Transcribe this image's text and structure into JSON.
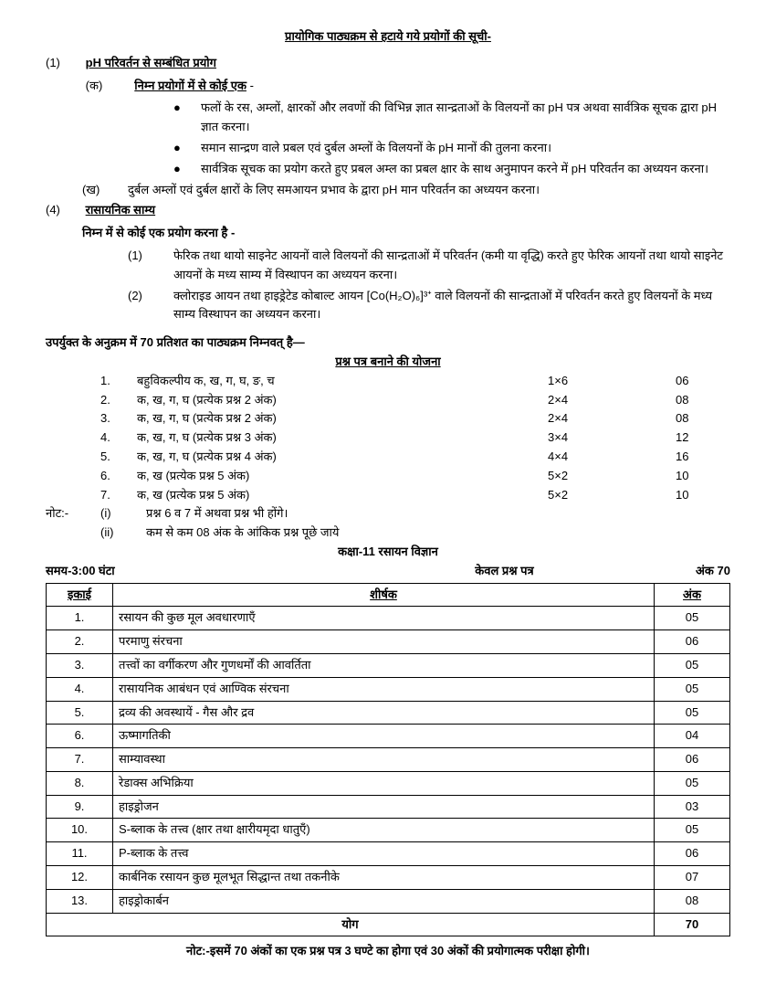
{
  "title": "प्रायोगिक पाठ्यक्रम से हटाये गये प्रयोगों की सूची-",
  "sec1": {
    "num": "(1)",
    "heading": "pH परिवर्तन से सम्बंधित प्रयोग",
    "ka": "(क)",
    "ka_text": "निम्न प्रयोगों में से कोई एक",
    "bullets": [
      "फलों के रस, अम्लों, क्षारकों और लवणों की विभिन्न ज्ञात सान्द्रताओं के विलयनों का pH पत्र अथवा सार्वत्रिक सूचक द्वारा pH ज्ञात करना।",
      "समान सान्द्रण वाले प्रबल एवं दुर्बल अम्लों के विलयनों के pH मानों की तुलना करना।",
      "सार्वत्रिक सूचक का प्रयोग करते हुए प्रबल अम्ल का प्रबल क्षार के साथ अनुमापन करने में pH परिवर्तन का अध्ययन करना।"
    ],
    "kha": "(ख)",
    "kha_text": "दुर्बल अम्लों एवं दुर्बल क्षारों के लिए समआयन प्रभाव के द्वारा pH मान परिवर्तन का अध्ययन करना।"
  },
  "sec4": {
    "num": "(4)",
    "heading": "रासायनिक साम्य",
    "sub": "निम्न में से कोई एक प्रयोग करना है -",
    "items": [
      {
        "n": "(1)",
        "text": "फेरिक तथा थायो साइनेट आयनों वाले विलयनों की सान्द्रताओं में परिवर्तन (कमी या वृद्धि) करते हुए फेरिक आयनों तथा थायो साइनेट आयनों के मध्य साम्य में विस्थापन का अध्ययन करना।"
      },
      {
        "n": "(2)",
        "text": "क्लोराइड आयन तथा हाइड्रेटेड कोबाल्ट आयन [Co(H₂O)₆]³⁺ वाले विलयनों की सान्द्रताओं में परिवर्तन करते हुए विलयनों के मध्य साम्य विस्थापन का अध्ययन करना।"
      }
    ]
  },
  "plan": {
    "heading": "उपर्युक्त के अनुक्रम में 70 प्रतिशत का पाठ्यक्रम निम्नवत् है—",
    "sub": "प्रश्न पत्र बनाने की योजना",
    "rows": [
      {
        "n": "1.",
        "desc": "बहुविकल्पीय क, ख, ग, घ, ङ, च",
        "calc": "1×6",
        "marks": "06"
      },
      {
        "n": "2.",
        "desc": "क, ख, ग, घ (प्रत्येक प्रश्न 2 अंक)",
        "calc": "2×4",
        "marks": "08"
      },
      {
        "n": "3.",
        "desc": "क, ख, ग, घ (प्रत्येक प्रश्न 2 अंक)",
        "calc": "2×4",
        "marks": "08"
      },
      {
        "n": "4.",
        "desc": "क, ख, ग, घ (प्रत्येक प्रश्न 3 अंक)",
        "calc": "3×4",
        "marks": "12"
      },
      {
        "n": "5.",
        "desc": "क, ख, ग, घ (प्रत्येक प्रश्न 4 अंक)",
        "calc": "4×4",
        "marks": "16"
      },
      {
        "n": "6.",
        "desc": "क, ख (प्रत्येक प्रश्न 5 अंक)",
        "calc": "5×2",
        "marks": "10"
      },
      {
        "n": "7.",
        "desc": "क, ख (प्रत्येक प्रश्न 5 अंक)",
        "calc": "5×2",
        "marks": "10"
      }
    ]
  },
  "notes": {
    "label": "नोट:-",
    "items": [
      {
        "n": "(i)",
        "text": "प्रश्न 6 व 7 में अथवा प्रश्न भी होंगे।"
      },
      {
        "n": "(ii)",
        "text": "कम से कम 08 अंक के आंकिक प्रश्न पूछे जाये"
      }
    ]
  },
  "class_heading": "कक्षा-11 रसायन विज्ञान",
  "header": {
    "time": "समय-3:00 घंटा",
    "center": "केवल प्रश्न पत्र",
    "marks": "अंक 70"
  },
  "table": {
    "headers": {
      "unit": "इकाई",
      "title": "शीर्षक",
      "marks": "अंक"
    },
    "rows": [
      {
        "n": "1.",
        "title": "रसायन की कुछ मूल अवधारणाएँ",
        "marks": "05"
      },
      {
        "n": "2.",
        "title": "परमाणु संरचना",
        "marks": "06"
      },
      {
        "n": "3.",
        "title": "तत्त्वों का वर्गीकरण और गुणधर्मों की आवर्तिता",
        "marks": "05"
      },
      {
        "n": "4.",
        "title": "रासायनिक आबंधन एवं आण्विक संरचना",
        "marks": "05"
      },
      {
        "n": "5.",
        "title": "द्रव्य की अवस्थायें - गैस और द्रव",
        "marks": "05"
      },
      {
        "n": "6.",
        "title": "ऊष्मागतिकी",
        "marks": "04"
      },
      {
        "n": "7.",
        "title": "साम्यावस्था",
        "marks": "06"
      },
      {
        "n": "8.",
        "title": "रेडाक्स अभिक्रिया",
        "marks": "05"
      },
      {
        "n": "9.",
        "title": "हाइड्रोजन",
        "marks": "03"
      },
      {
        "n": "10.",
        "title": "S-ब्लाक के तत्त्व (क्षार तथा क्षारीयमृदा धातुएँ)",
        "marks": "05"
      },
      {
        "n": "11.",
        "title": "P-ब्लाक के तत्त्व",
        "marks": "06"
      },
      {
        "n": "12.",
        "title": "कार्बनिक रसायन कुछ मूलभूत सिद्धान्त तथा तकनीके",
        "marks": "07"
      },
      {
        "n": "13.",
        "title": "हाइड्रोकार्बन",
        "marks": "08"
      }
    ],
    "total_label": "योग",
    "total": "70"
  },
  "footnote": "नोट:-इसमें 70 अंकों का एक प्रश्न पत्र 3 घण्टे का होगा एवं 30 अंकों की प्रयोगात्मक परीक्षा होगी।"
}
